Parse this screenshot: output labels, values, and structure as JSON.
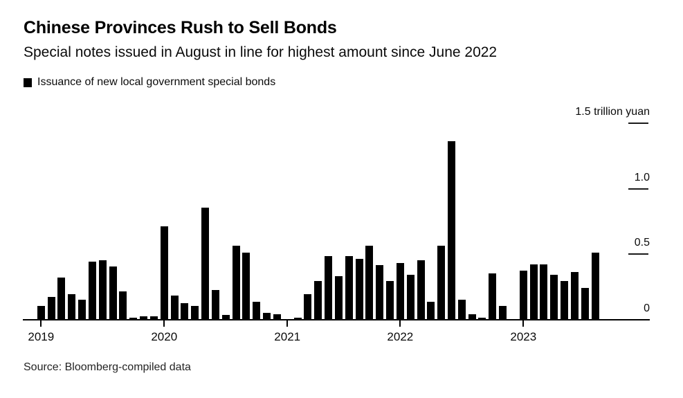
{
  "header": {
    "title": "Chinese Provinces Rush to Sell Bonds",
    "subtitle": "Special notes issued in August in line for highest amount since June 2022",
    "legend_label": "Issuance of new local government special bonds"
  },
  "footer": {
    "source": "Source: Bloomberg-compiled data"
  },
  "colors": {
    "bar": "#000000",
    "text": "#000000",
    "axis": "#000000",
    "background": "#ffffff"
  },
  "chart_data": {
    "type": "bar",
    "title": "Chinese Provinces Rush to Sell Bonds",
    "subtitle": "Special notes issued in August in line for highest amount since June 2022",
    "series_name": "Issuance of new local government special bonds",
    "unit": "trillion yuan",
    "ylim": [
      0,
      1.5
    ],
    "grid": false,
    "legend_position": "top-left",
    "y_axis_side": "right",
    "y_ticks": [
      {
        "value": 0,
        "label": "0"
      },
      {
        "value": 0.5,
        "label": "0.5"
      },
      {
        "value": 1.0,
        "label": "1.0"
      },
      {
        "value": 1.5,
        "label": "1.5 trillion yuan"
      }
    ],
    "x_year_ticks": [
      {
        "label": "2019",
        "bar_index": 0
      },
      {
        "label": "2020",
        "bar_index": 12
      },
      {
        "label": "2021",
        "bar_index": 24
      },
      {
        "label": "2022",
        "bar_index": 35
      },
      {
        "label": "2023",
        "bar_index": 47
      }
    ],
    "values": [
      0.11,
      0.18,
      0.33,
      0.2,
      0.16,
      0.45,
      0.46,
      0.41,
      0.22,
      0.02,
      0.03,
      0.03,
      0.72,
      0.19,
      0.13,
      0.11,
      0.86,
      0.23,
      0.04,
      0.57,
      0.52,
      0.14,
      0.06,
      0.05,
      0.01,
      0.02,
      0.2,
      0.3,
      0.49,
      0.34,
      0.49,
      0.47,
      0.57,
      0.42,
      0.3,
      0.44,
      0.35,
      0.46,
      0.14,
      0.57,
      1.37,
      0.16,
      0.05,
      0.02,
      0.36,
      0.11,
      0.01,
      0.38,
      0.43,
      0.43,
      0.35,
      0.3,
      0.37,
      0.25,
      0.52
    ]
  }
}
